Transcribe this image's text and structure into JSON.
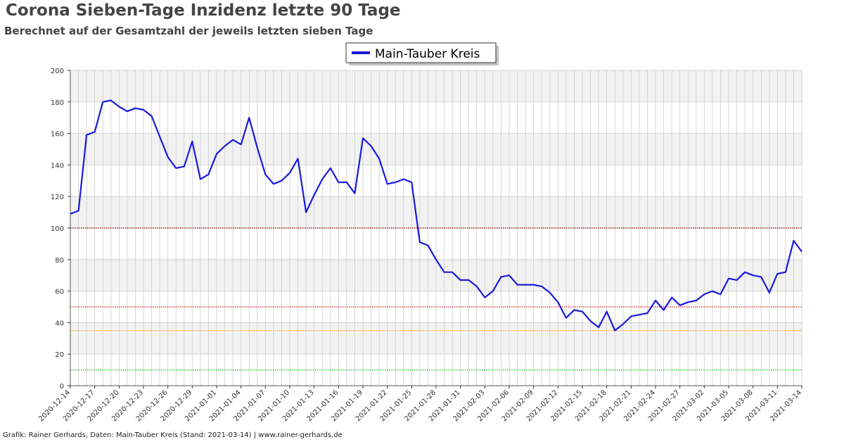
{
  "header": {
    "title": "Corona Sieben-Tage Inzidenz letzte 90 Tage",
    "subtitle": "Berechnet auf der Gesamtzahl der jeweils letzten sieben Tage"
  },
  "footer": {
    "text": "Grafik: Rainer Gerhards, Daten: Main-Tauber Kreis (Stand: 2021-03-14) | www.rainer-gerhards.de"
  },
  "colors": {
    "line": "#1a1adc",
    "band": "#f2f2f2",
    "grid": "#cccccc",
    "ref_dark_red": "#8b0000",
    "ref_red": "#cc2222",
    "ref_orange": "#ffa500",
    "ref_green": "#22bb22"
  },
  "chart_data": {
    "type": "line",
    "title": "Corona Sieben-Tage Inzidenz letzte 90 Tage",
    "subtitle": "Berechnet auf der Gesamtzahl der jeweils letzten sieben Tage",
    "ylim": [
      0,
      200
    ],
    "yticks": [
      0,
      20,
      40,
      60,
      80,
      100,
      120,
      140,
      160,
      180,
      200
    ],
    "x_start": "2020-12-14",
    "x_end": "2021-03-14",
    "xtick_labels": [
      "2020-12-14",
      "2020-12-17",
      "2020-12-20",
      "2020-12-23",
      "2020-12-26",
      "2020-12-29",
      "2021-01-01",
      "2021-01-04",
      "2021-01-07",
      "2021-01-10",
      "2021-01-13",
      "2021-01-16",
      "2021-01-19",
      "2021-01-22",
      "2021-01-25",
      "2021-01-28",
      "2021-01-31",
      "2021-02-03",
      "2021-02-06",
      "2021-02-09",
      "2021-02-12",
      "2021-02-15",
      "2021-02-18",
      "2021-02-21",
      "2021-02-24",
      "2021-02-27",
      "2021-03-02",
      "2021-03-05",
      "2021-03-08",
      "2021-03-11",
      "2021-03-14"
    ],
    "grid": true,
    "legend_position": "top-center",
    "reference_lines": [
      {
        "y": 100,
        "color": "#8b0000"
      },
      {
        "y": 50,
        "color": "#cc2222"
      },
      {
        "y": 35,
        "color": "#ffa500"
      },
      {
        "y": 10,
        "color": "#22bb22"
      }
    ],
    "series": [
      {
        "name": "Main-Tauber Kreis",
        "values": [
          109,
          111,
          159,
          161,
          180,
          181,
          177,
          174,
          176,
          175,
          171,
          158,
          145,
          138,
          139,
          155,
          131,
          134,
          147,
          152,
          156,
          153,
          170,
          151,
          134,
          128,
          130,
          135,
          144,
          110,
          121,
          131,
          138,
          129,
          129,
          122,
          157,
          152,
          144,
          128,
          129,
          131,
          129,
          91,
          89,
          80,
          72,
          72,
          67,
          67,
          63,
          56,
          60,
          69,
          70,
          64,
          64,
          64,
          63,
          59,
          53,
          43,
          48,
          47,
          41,
          37,
          47,
          35,
          39,
          44,
          45,
          46,
          54,
          48,
          56,
          51,
          53,
          54,
          58,
          60,
          58,
          68,
          67,
          72,
          70,
          69,
          59,
          71,
          72,
          92,
          85
        ]
      }
    ]
  }
}
